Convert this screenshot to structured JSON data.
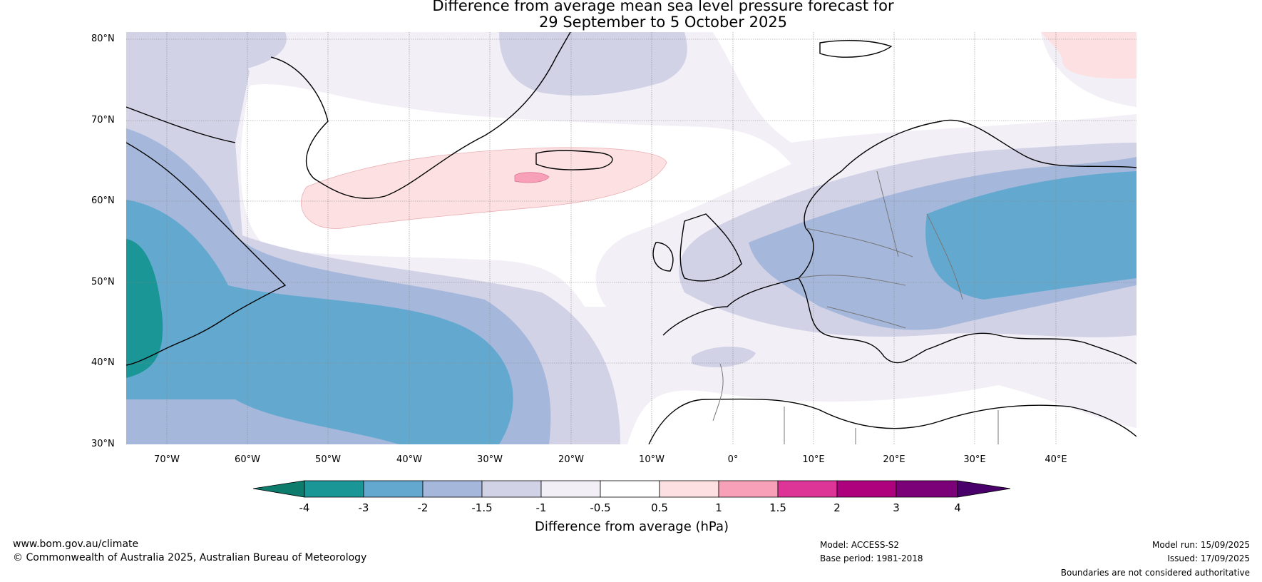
{
  "title": {
    "line1": "Difference from average mean sea level pressure forecast for",
    "line2": "29 September to 5 October 2025"
  },
  "latitude_labels": [
    "80°N",
    "70°N",
    "60°N",
    "50°N",
    "40°N",
    "30°N"
  ],
  "longitude_labels": [
    "70°W",
    "60°W",
    "50°W",
    "40°W",
    "30°W",
    "20°W",
    "10°W",
    "0°",
    "10°E",
    "20°E",
    "30°E",
    "40°E"
  ],
  "colorbar": {
    "title": "Difference from average (hPa)",
    "ticks": [
      "-4",
      "-3",
      "-2",
      "-1.5",
      "-1",
      "-0.5",
      "0.5",
      "1",
      "1.5",
      "2",
      "3",
      "4"
    ],
    "colors": [
      "#0e7c6d",
      "#1a9696",
      "#63a9cf",
      "#a5b8dc",
      "#d1d2e6",
      "#f3eff7",
      "#ffffff",
      "#fde0e1",
      "#f7a0b8",
      "#dd3497",
      "#ae017e",
      "#7a0177",
      "#49006a"
    ]
  },
  "footer": {
    "website": "www.bom.gov.au/climate",
    "copyright": "© Commonwealth of Australia 2025, Australian Bureau of Meteorology",
    "model": "Model: ACCESS-S2",
    "base_period": "Base period: 1981-2018",
    "model_run": "Model run: 15/09/2025",
    "issued": "Issued: 17/09/2025",
    "disclaimer": "Boundaries are not considered authoritative"
  }
}
